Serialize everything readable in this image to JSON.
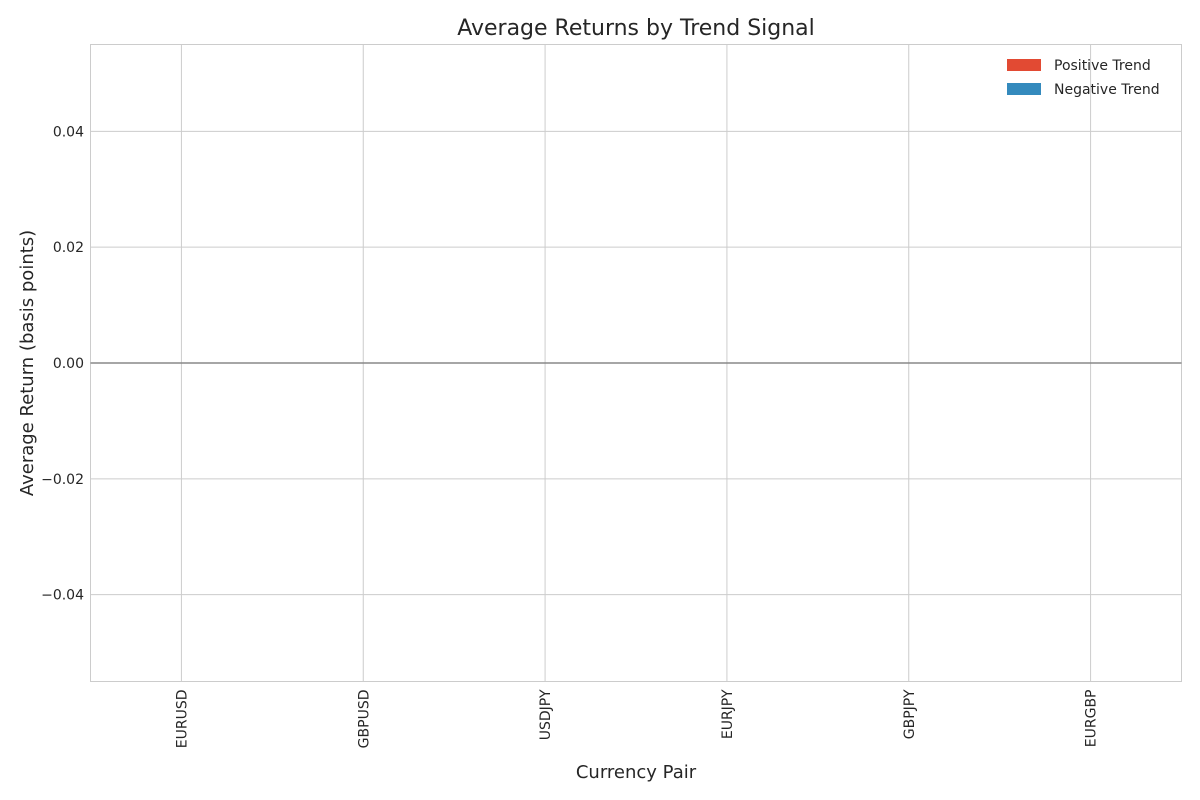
{
  "chart_data": {
    "type": "bar",
    "title": "Average Returns by Trend Signal",
    "xlabel": "Currency Pair",
    "ylabel": "Average Return (basis points)",
    "categories": [
      "EURUSD",
      "GBPUSD",
      "USDJPY",
      "EURJPY",
      "GBPJPY",
      "EURGBP"
    ],
    "series": [
      {
        "name": "Positive Trend",
        "color": "#E24A33",
        "values": [
          0,
          0,
          0,
          0,
          0,
          0
        ]
      },
      {
        "name": "Negative Trend",
        "color": "#348ABD",
        "values": [
          0,
          0,
          0,
          0,
          0,
          0
        ]
      }
    ],
    "ylim": [
      -0.055,
      0.055
    ],
    "yticks": [
      -0.04,
      -0.02,
      0.0,
      0.02,
      0.04
    ],
    "ytick_labels": [
      "−0.04",
      "−0.02",
      "0.00",
      "0.02",
      "0.04"
    ],
    "grid": true,
    "zero_line": true,
    "legend_position": "top-right"
  }
}
